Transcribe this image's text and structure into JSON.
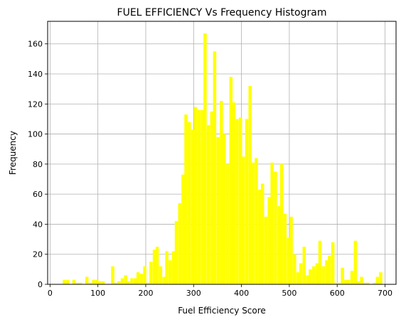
{
  "chart_data": {
    "type": "bar",
    "title": "FUEL EFFICIENCY Vs Frequency Histogram",
    "xlabel": "Fuel Efficiency Score",
    "ylabel": "Frequency",
    "xlim": [
      -5,
      723
    ],
    "ylim": [
      0,
      175
    ],
    "xticks": [
      0,
      100,
      200,
      300,
      400,
      500,
      600,
      700
    ],
    "yticks": [
      0,
      20,
      40,
      60,
      80,
      100,
      120,
      140,
      160
    ],
    "grid": true,
    "bar_color": "#ffff00",
    "bin_width": 6.7,
    "bins": [
      {
        "x": 30,
        "y": 3
      },
      {
        "x": 37,
        "y": 3
      },
      {
        "x": 50,
        "y": 3
      },
      {
        "x": 57,
        "y": 1
      },
      {
        "x": 64,
        "y": 1
      },
      {
        "x": 77,
        "y": 5
      },
      {
        "x": 84,
        "y": 1
      },
      {
        "x": 91,
        "y": 3
      },
      {
        "x": 98,
        "y": 3
      },
      {
        "x": 104,
        "y": 2
      },
      {
        "x": 111,
        "y": 2
      },
      {
        "x": 131,
        "y": 12
      },
      {
        "x": 138,
        "y": 1
      },
      {
        "x": 144,
        "y": 2
      },
      {
        "x": 151,
        "y": 4
      },
      {
        "x": 158,
        "y": 6
      },
      {
        "x": 164,
        "y": 2
      },
      {
        "x": 171,
        "y": 4
      },
      {
        "x": 178,
        "y": 4
      },
      {
        "x": 184,
        "y": 8
      },
      {
        "x": 191,
        "y": 7
      },
      {
        "x": 198,
        "y": 12
      },
      {
        "x": 204,
        "y": 1
      },
      {
        "x": 211,
        "y": 15
      },
      {
        "x": 218,
        "y": 23
      },
      {
        "x": 224,
        "y": 25
      },
      {
        "x": 231,
        "y": 12
      },
      {
        "x": 238,
        "y": 5
      },
      {
        "x": 244,
        "y": 22
      },
      {
        "x": 251,
        "y": 16
      },
      {
        "x": 258,
        "y": 22
      },
      {
        "x": 264,
        "y": 42
      },
      {
        "x": 271,
        "y": 54
      },
      {
        "x": 278,
        "y": 73
      },
      {
        "x": 284,
        "y": 113
      },
      {
        "x": 291,
        "y": 108
      },
      {
        "x": 298,
        "y": 103
      },
      {
        "x": 304,
        "y": 118
      },
      {
        "x": 311,
        "y": 116
      },
      {
        "x": 318,
        "y": 116
      },
      {
        "x": 324,
        "y": 167
      },
      {
        "x": 331,
        "y": 106
      },
      {
        "x": 338,
        "y": 115
      },
      {
        "x": 344,
        "y": 155
      },
      {
        "x": 351,
        "y": 98
      },
      {
        "x": 358,
        "y": 122
      },
      {
        "x": 364,
        "y": 100
      },
      {
        "x": 371,
        "y": 80
      },
      {
        "x": 378,
        "y": 138
      },
      {
        "x": 384,
        "y": 121
      },
      {
        "x": 391,
        "y": 110
      },
      {
        "x": 398,
        "y": 111
      },
      {
        "x": 404,
        "y": 85
      },
      {
        "x": 411,
        "y": 110
      },
      {
        "x": 418,
        "y": 132
      },
      {
        "x": 424,
        "y": 81
      },
      {
        "x": 431,
        "y": 84
      },
      {
        "x": 438,
        "y": 63
      },
      {
        "x": 444,
        "y": 67
      },
      {
        "x": 451,
        "y": 45
      },
      {
        "x": 458,
        "y": 58
      },
      {
        "x": 464,
        "y": 81
      },
      {
        "x": 471,
        "y": 75
      },
      {
        "x": 478,
        "y": 52
      },
      {
        "x": 484,
        "y": 80
      },
      {
        "x": 491,
        "y": 47
      },
      {
        "x": 498,
        "y": 31
      },
      {
        "x": 504,
        "y": 45
      },
      {
        "x": 511,
        "y": 20
      },
      {
        "x": 518,
        "y": 8
      },
      {
        "x": 524,
        "y": 14
      },
      {
        "x": 531,
        "y": 25
      },
      {
        "x": 538,
        "y": 6
      },
      {
        "x": 544,
        "y": 10
      },
      {
        "x": 551,
        "y": 12
      },
      {
        "x": 558,
        "y": 14
      },
      {
        "x": 564,
        "y": 29
      },
      {
        "x": 571,
        "y": 12
      },
      {
        "x": 578,
        "y": 16
      },
      {
        "x": 584,
        "y": 19
      },
      {
        "x": 591,
        "y": 28
      },
      {
        "x": 598,
        "y": 1
      },
      {
        "x": 604,
        "y": 1
      },
      {
        "x": 611,
        "y": 11
      },
      {
        "x": 618,
        "y": 3
      },
      {
        "x": 624,
        "y": 3
      },
      {
        "x": 631,
        "y": 9
      },
      {
        "x": 638,
        "y": 29
      },
      {
        "x": 644,
        "y": 2
      },
      {
        "x": 651,
        "y": 5
      },
      {
        "x": 658,
        "y": 1
      },
      {
        "x": 664,
        "y": 1
      },
      {
        "x": 678,
        "y": 1
      },
      {
        "x": 684,
        "y": 5
      },
      {
        "x": 691,
        "y": 8
      }
    ]
  }
}
